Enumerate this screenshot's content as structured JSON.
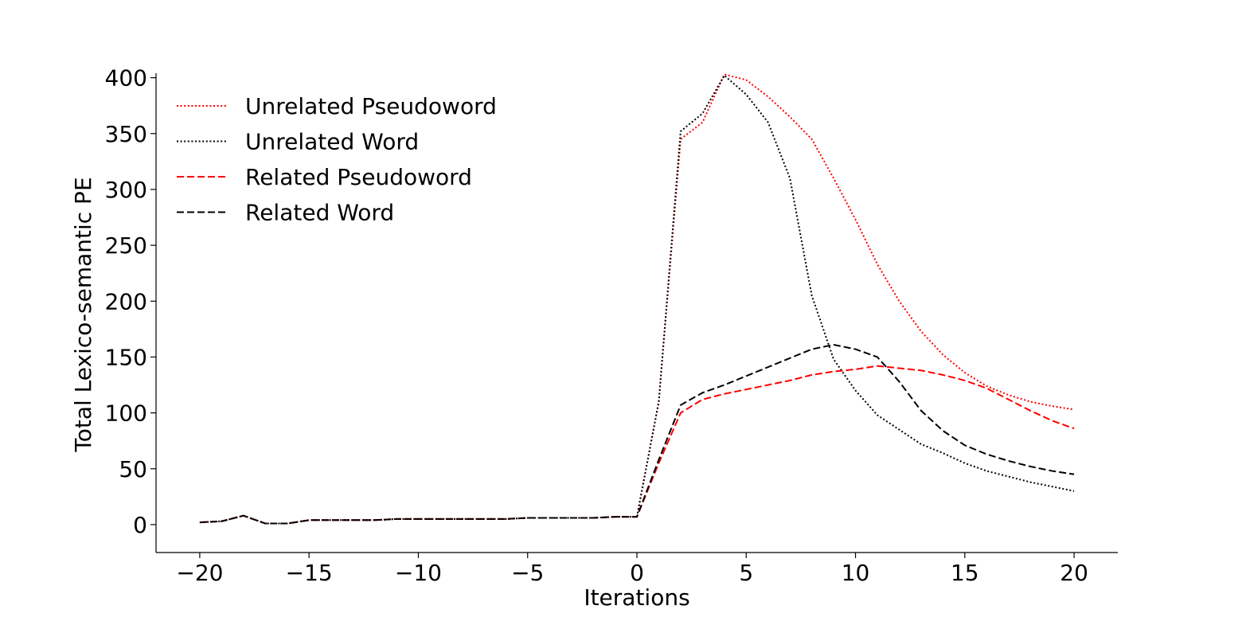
{
  "chart_data": {
    "type": "line",
    "xlabel": "Iterations",
    "ylabel": "Total Lexico-semantic PE",
    "xlim": [
      -22,
      22
    ],
    "ylim": [
      -25,
      404
    ],
    "xticks": [
      -20,
      -15,
      -10,
      -5,
      0,
      5,
      10,
      15,
      20
    ],
    "yticks": [
      0,
      50,
      100,
      150,
      200,
      250,
      300,
      350,
      400
    ],
    "xtick_labels": [
      "−20",
      "−15",
      "−10",
      "−5",
      "0",
      "5",
      "10",
      "15",
      "20"
    ],
    "ytick_labels": [
      "0",
      "50",
      "100",
      "150",
      "200",
      "250",
      "300",
      "350",
      "400"
    ],
    "legend_position": "top-left",
    "grid": false,
    "x": [
      -20,
      -19,
      -18,
      -17,
      -16,
      -15,
      -14,
      -13,
      -12,
      -11,
      -10,
      -9,
      -8,
      -7,
      -6,
      -5,
      -4,
      -3,
      -2,
      -1,
      0,
      1,
      2,
      3,
      4,
      5,
      6,
      7,
      8,
      9,
      10,
      11,
      12,
      13,
      14,
      15,
      16,
      17,
      18,
      19,
      20
    ],
    "series": [
      {
        "name": "Unrelated Pseudoword",
        "color": "#ff0000",
        "style": "dotted",
        "values": [
          2,
          3,
          8,
          1,
          1,
          4,
          4,
          4,
          4,
          5,
          5,
          5,
          5,
          5,
          5,
          6,
          6,
          6,
          6,
          7,
          7,
          110,
          345,
          360,
          403,
          398,
          383,
          365,
          345,
          310,
          273,
          233,
          200,
          173,
          152,
          136,
          124,
          116,
          110,
          106,
          103
        ]
      },
      {
        "name": "Unrelated Word",
        "color": "#000000",
        "style": "dotted",
        "values": [
          2,
          3,
          8,
          1,
          1,
          4,
          4,
          4,
          4,
          5,
          5,
          5,
          5,
          5,
          5,
          6,
          6,
          6,
          6,
          7,
          7,
          110,
          352,
          368,
          402,
          385,
          360,
          310,
          205,
          148,
          120,
          98,
          85,
          72,
          64,
          55,
          48,
          43,
          38,
          34,
          30
        ]
      },
      {
        "name": "Related Pseudoword",
        "color": "#ff0000",
        "style": "dashed",
        "values": [
          2,
          3,
          8,
          1,
          1,
          4,
          4,
          4,
          4,
          5,
          5,
          5,
          5,
          5,
          5,
          6,
          6,
          6,
          6,
          7,
          7,
          55,
          100,
          112,
          117,
          121,
          125,
          129,
          134,
          137,
          139,
          142,
          140,
          138,
          134,
          129,
          122,
          112,
          102,
          93,
          86
        ]
      },
      {
        "name": "Related Word",
        "color": "#000000",
        "style": "dashed",
        "values": [
          2,
          3,
          8,
          1,
          1,
          4,
          4,
          4,
          4,
          5,
          5,
          5,
          5,
          5,
          5,
          6,
          6,
          6,
          6,
          7,
          7,
          58,
          107,
          118,
          125,
          133,
          141,
          149,
          157,
          161,
          157,
          150,
          128,
          102,
          84,
          71,
          63,
          57,
          52,
          48,
          45
        ]
      }
    ]
  }
}
